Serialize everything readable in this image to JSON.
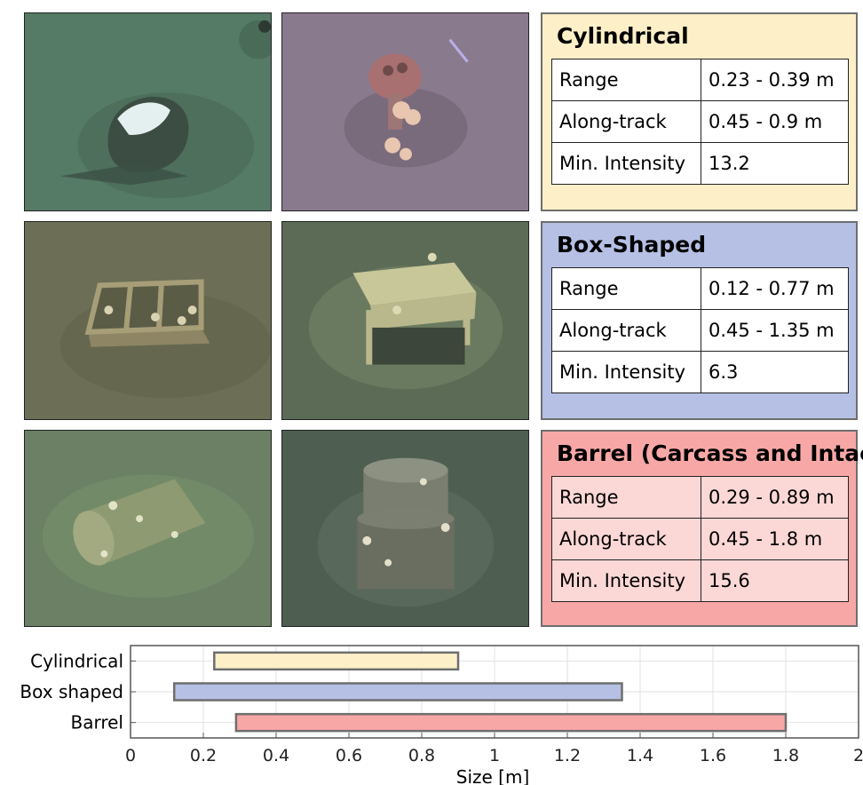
{
  "panels": {
    "cylindrical": {
      "title": "Cylindrical",
      "color": "#fdefc8",
      "rows": [
        {
          "label": "Range",
          "value": "0.23 - 0.39 m"
        },
        {
          "label": "Along-track",
          "value": "0.45 - 0.9 m"
        },
        {
          "label": "Min. Intensity",
          "value": "13.2"
        }
      ]
    },
    "box": {
      "title": "Box-Shaped",
      "color": "#b5c0e4",
      "rows": [
        {
          "label": "Range",
          "value": "0.12 - 0.77 m"
        },
        {
          "label": "Along-track",
          "value": "0.45 - 1.35 m"
        },
        {
          "label": "Min. Intensity",
          "value": "6.3"
        }
      ]
    },
    "barrel": {
      "title": "Barrel (Carcass and Intact)",
      "color": "#f7a8a6",
      "rows": [
        {
          "label": "Range",
          "value": "0.29 - 0.89 m"
        },
        {
          "label": "Along-track",
          "value": "0.45 - 1.8 m"
        },
        {
          "label": "Min. Intensity",
          "value": "15.6"
        }
      ]
    }
  },
  "chart_data": {
    "type": "bar",
    "orientation": "horizontal-range",
    "categories": [
      "Cylindrical",
      "Box shaped",
      "Barrel"
    ],
    "ranges": [
      {
        "start": 0.23,
        "end": 0.9,
        "color": "#fdefc8"
      },
      {
        "start": 0.12,
        "end": 1.35,
        "color": "#b5c0e4"
      },
      {
        "start": 0.29,
        "end": 1.8,
        "color": "#f7a8a6"
      }
    ],
    "xlabel": "Size [m]",
    "xlim": [
      0,
      2
    ],
    "xticks": [
      "0",
      "0.2",
      "0.4",
      "0.6",
      "0.8",
      "1",
      "1.2",
      "1.4",
      "1.6",
      "1.8",
      "2"
    ],
    "grid": true
  }
}
